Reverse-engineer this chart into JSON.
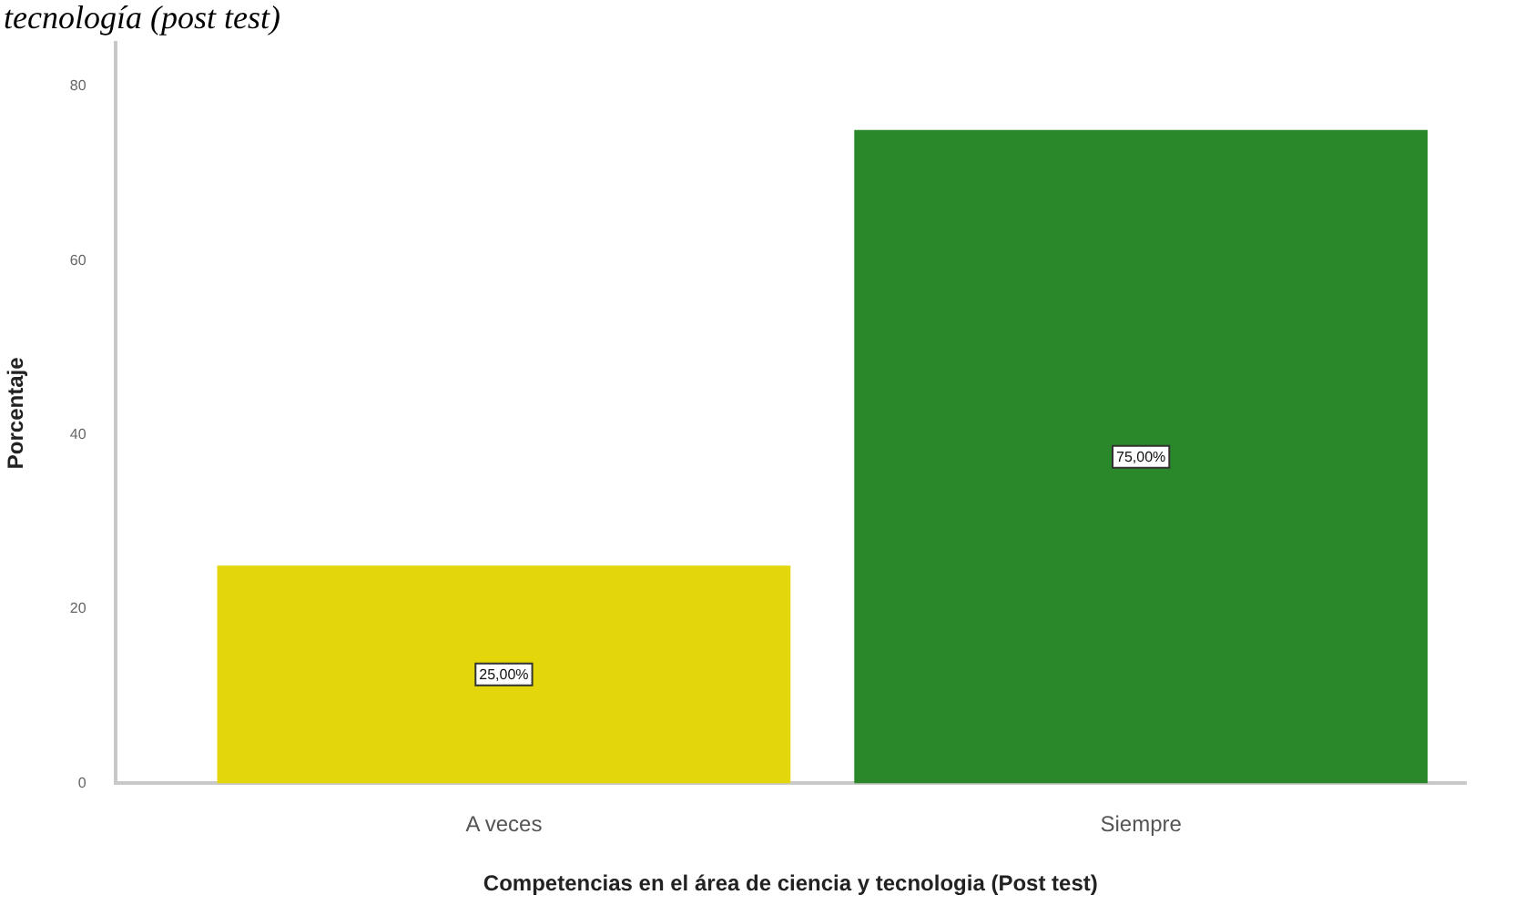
{
  "chart_data": {
    "type": "bar",
    "title": "tecnología (post test)",
    "xlabel": "Competencias en el área de ciencia y tecnologia (Post test)",
    "ylabel": "Porcentaje",
    "categories": [
      "A veces",
      "Siempre"
    ],
    "values": [
      25,
      75
    ],
    "colors": [
      "#e3d60b",
      "#2a882a"
    ],
    "value_labels": [
      "25,00%",
      "75,00%"
    ],
    "ylim": [
      0,
      85
    ],
    "yticks": [
      0,
      20,
      40,
      60,
      80
    ]
  }
}
